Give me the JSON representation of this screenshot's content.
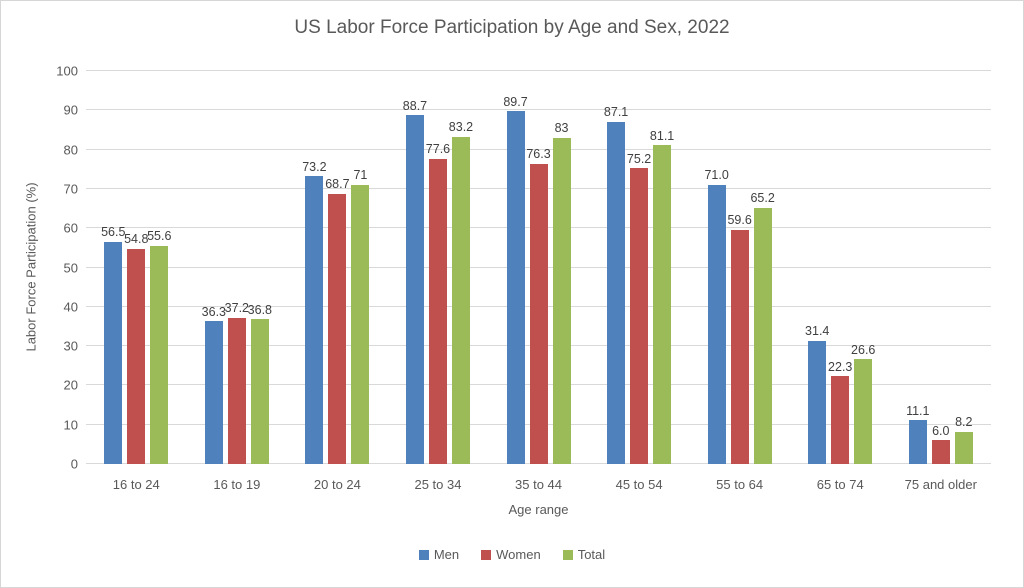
{
  "chart_data": {
    "type": "bar",
    "title": "US Labor Force Participation by Age and Sex, 2022",
    "xlabel": "Age range",
    "ylabel": "Labor Force Participation (%)",
    "categories": [
      "16 to 24",
      "16 to 19",
      "20 to 24",
      "25 to 34",
      "35 to 44",
      "45 to 54",
      "55 to 64",
      "65 to 74",
      "75 and older"
    ],
    "series": [
      {
        "name": "Men",
        "color": "#4F81BD",
        "values": [
          56.5,
          36.3,
          73.2,
          88.7,
          89.7,
          87.1,
          71.0,
          31.4,
          11.1
        ],
        "labels": [
          "56.5",
          "36.3",
          "73.2",
          "88.7",
          "89.7",
          "87.1",
          "71.0",
          "31.4",
          "11.1"
        ]
      },
      {
        "name": "Women",
        "color": "#C0504D",
        "values": [
          54.8,
          37.2,
          68.7,
          77.6,
          76.3,
          75.2,
          59.6,
          22.3,
          6.0
        ],
        "labels": [
          "54.8",
          "37.2",
          "68.7",
          "77.6",
          "76.3",
          "75.2",
          "59.6",
          "22.3",
          "6.0"
        ]
      },
      {
        "name": "Total",
        "color": "#9BBB59",
        "values": [
          55.6,
          36.8,
          71,
          83.2,
          83,
          81.1,
          65.2,
          26.6,
          8.2
        ],
        "labels": [
          "55.6",
          "36.8",
          "71",
          "83.2",
          "83",
          "81.1",
          "65.2",
          "26.6",
          "8.2"
        ]
      }
    ],
    "ylim": [
      0,
      100
    ],
    "ytick_step": 10,
    "grid": true,
    "legend_position": "bottom",
    "gridline_color": "#D9D9D9",
    "text_color": "#595959",
    "data_label_color": "#404040"
  }
}
